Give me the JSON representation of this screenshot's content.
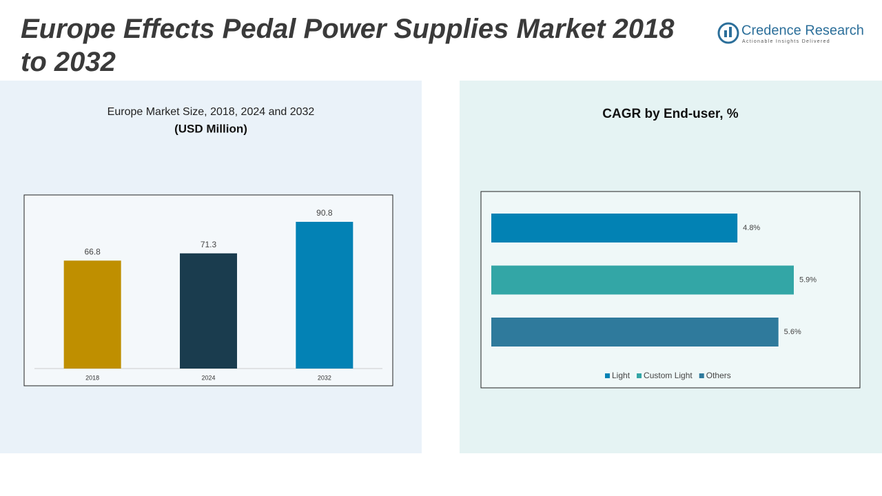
{
  "header": {
    "title": "Europe Effects Pedal Power Supplies Market 2018 to 2032",
    "logo_name": "Credence Research",
    "logo_tagline": "Actionable Insights Delivered"
  },
  "chart_data": [
    {
      "type": "bar",
      "title": "Europe Market Size, 2018, 2024 and 2032",
      "subtitle": "(USD Million)",
      "categories": [
        "2018",
        "2024",
        "2032"
      ],
      "values": [
        66.8,
        71.3,
        90.8
      ],
      "colors": [
        "#bf8f00",
        "#1a3c4e",
        "#0382b5"
      ]
    },
    {
      "type": "barh",
      "title": "CAGR by End-user, %",
      "series": [
        {
          "name": "Light",
          "color": "#0282b4",
          "values": [
            4.8
          ],
          "value_labels": [
            "4.8%"
          ]
        },
        {
          "name": "Custom Light",
          "color": "#33a6a6",
          "values": [
            5.9
          ],
          "value_labels": [
            "5.9%"
          ]
        },
        {
          "name": "Others",
          "color": "#2f7a9c",
          "values": [
            5.6
          ],
          "value_labels": [
            "5.6%"
          ]
        }
      ]
    }
  ]
}
